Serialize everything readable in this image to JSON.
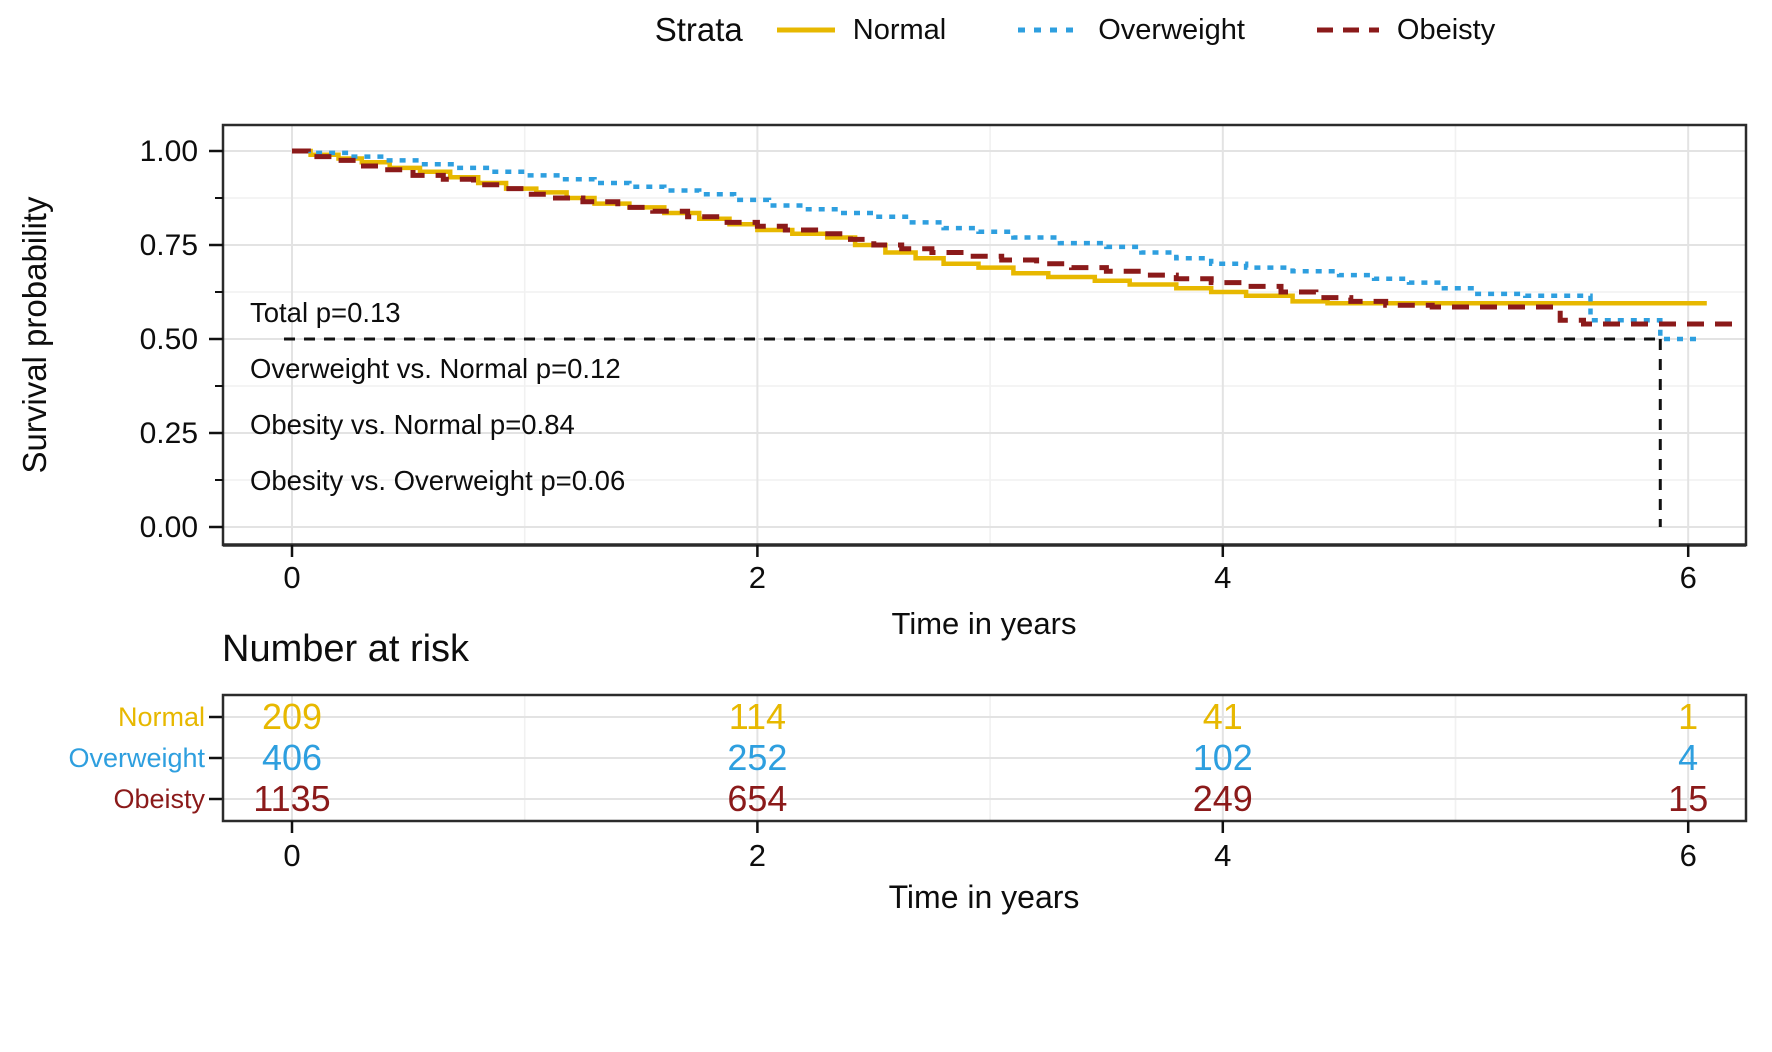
{
  "figure": {
    "background": "#ffffff"
  },
  "legend": {
    "title": "Strata",
    "items": [
      {
        "label": "Normal",
        "color": "#E7B800",
        "style": "solid"
      },
      {
        "label": "Overweight",
        "color": "#2E9FDF",
        "style": "dotted"
      },
      {
        "label": "Obeisty",
        "color": "#8B1A1A",
        "style": "dashed"
      }
    ]
  },
  "chart_data": {
    "type": "line",
    "subtype": "kaplan-meier-step",
    "title": "",
    "xlabel": "Time in years",
    "ylabel": "Survival probability",
    "xlim": [
      0,
      6.35
    ],
    "ylim": [
      0,
      1
    ],
    "xticks": [
      0,
      2,
      4,
      6
    ],
    "xticks_minor": [
      1,
      3,
      5
    ],
    "yticks": [
      {
        "value": 0,
        "label": "0.00"
      },
      {
        "value": 0.25,
        "label": "0.25"
      },
      {
        "value": 0.5,
        "label": "0.50"
      },
      {
        "value": 0.75,
        "label": "0.75"
      },
      {
        "value": 1,
        "label": "1.00"
      }
    ],
    "yticks_minor": [
      0.125,
      0.375,
      0.625,
      0.875
    ],
    "grid": true,
    "legend_position": "top",
    "annotations": [
      "Total p=0.13",
      "Overweight vs. Normal p=0.12",
      "Obesity vs. Normal p=0.84",
      "Obesity vs. Overweight p=0.06"
    ],
    "median_survival": {
      "time": 5.88,
      "probability": 0.5
    },
    "reference_line_color": "#111111",
    "series": [
      {
        "name": "Normal",
        "color": "#E7B800",
        "dash": "solid",
        "points": [
          [
            0,
            1
          ],
          [
            0.08,
            0.99
          ],
          [
            0.2,
            0.98
          ],
          [
            0.3,
            0.97
          ],
          [
            0.42,
            0.955
          ],
          [
            0.55,
            0.945
          ],
          [
            0.68,
            0.93
          ],
          [
            0.8,
            0.915
          ],
          [
            0.92,
            0.9
          ],
          [
            1.05,
            0.89
          ],
          [
            1.18,
            0.875
          ],
          [
            1.3,
            0.86
          ],
          [
            1.45,
            0.85
          ],
          [
            1.6,
            0.835
          ],
          [
            1.75,
            0.82
          ],
          [
            1.88,
            0.805
          ],
          [
            2.0,
            0.79
          ],
          [
            2.15,
            0.78
          ],
          [
            2.3,
            0.77
          ],
          [
            2.42,
            0.75
          ],
          [
            2.55,
            0.73
          ],
          [
            2.68,
            0.715
          ],
          [
            2.8,
            0.7
          ],
          [
            2.95,
            0.69
          ],
          [
            3.1,
            0.675
          ],
          [
            3.25,
            0.665
          ],
          [
            3.45,
            0.655
          ],
          [
            3.6,
            0.645
          ],
          [
            3.8,
            0.635
          ],
          [
            3.95,
            0.625
          ],
          [
            4.1,
            0.615
          ],
          [
            4.3,
            0.6
          ],
          [
            4.45,
            0.595
          ],
          [
            6.08,
            0.595
          ]
        ]
      },
      {
        "name": "Overweight",
        "color": "#2E9FDF",
        "dash": "dotted",
        "points": [
          [
            0,
            1
          ],
          [
            0.1,
            0.995
          ],
          [
            0.25,
            0.985
          ],
          [
            0.4,
            0.975
          ],
          [
            0.55,
            0.965
          ],
          [
            0.7,
            0.955
          ],
          [
            0.85,
            0.945
          ],
          [
            1.0,
            0.935
          ],
          [
            1.15,
            0.925
          ],
          [
            1.3,
            0.915
          ],
          [
            1.45,
            0.905
          ],
          [
            1.6,
            0.895
          ],
          [
            1.75,
            0.885
          ],
          [
            1.9,
            0.87
          ],
          [
            2.05,
            0.855
          ],
          [
            2.2,
            0.845
          ],
          [
            2.35,
            0.835
          ],
          [
            2.5,
            0.825
          ],
          [
            2.65,
            0.81
          ],
          [
            2.8,
            0.795
          ],
          [
            2.95,
            0.785
          ],
          [
            3.1,
            0.77
          ],
          [
            3.3,
            0.755
          ],
          [
            3.5,
            0.745
          ],
          [
            3.65,
            0.73
          ],
          [
            3.8,
            0.715
          ],
          [
            3.95,
            0.7
          ],
          [
            4.1,
            0.69
          ],
          [
            4.3,
            0.68
          ],
          [
            4.5,
            0.67
          ],
          [
            4.65,
            0.66
          ],
          [
            4.8,
            0.65
          ],
          [
            4.95,
            0.635
          ],
          [
            5.08,
            0.62
          ],
          [
            5.3,
            0.615
          ],
          [
            5.58,
            0.55
          ],
          [
            5.88,
            0.5
          ],
          [
            6.06,
            0.5
          ]
        ]
      },
      {
        "name": "Obeisty",
        "color": "#8B1A1A",
        "dash": "dashed",
        "points": [
          [
            0,
            1
          ],
          [
            0.07,
            0.985
          ],
          [
            0.17,
            0.975
          ],
          [
            0.28,
            0.96
          ],
          [
            0.4,
            0.95
          ],
          [
            0.52,
            0.935
          ],
          [
            0.65,
            0.925
          ],
          [
            0.78,
            0.91
          ],
          [
            0.9,
            0.9
          ],
          [
            1.0,
            0.885
          ],
          [
            1.12,
            0.875
          ],
          [
            1.25,
            0.865
          ],
          [
            1.4,
            0.85
          ],
          [
            1.55,
            0.84
          ],
          [
            1.7,
            0.825
          ],
          [
            1.85,
            0.81
          ],
          [
            2.0,
            0.8
          ],
          [
            2.12,
            0.79
          ],
          [
            2.25,
            0.78
          ],
          [
            2.4,
            0.765
          ],
          [
            2.5,
            0.75
          ],
          [
            2.62,
            0.74
          ],
          [
            2.75,
            0.73
          ],
          [
            2.9,
            0.72
          ],
          [
            3.05,
            0.71
          ],
          [
            3.2,
            0.7
          ],
          [
            3.35,
            0.69
          ],
          [
            3.5,
            0.68
          ],
          [
            3.65,
            0.67
          ],
          [
            3.8,
            0.66
          ],
          [
            3.95,
            0.65
          ],
          [
            4.1,
            0.64
          ],
          [
            4.25,
            0.625
          ],
          [
            4.4,
            0.61
          ],
          [
            4.55,
            0.6
          ],
          [
            4.7,
            0.59
          ],
          [
            4.9,
            0.585
          ],
          [
            5.45,
            0.55
          ],
          [
            5.55,
            0.54
          ],
          [
            6.22,
            0.54
          ]
        ]
      }
    ]
  },
  "risk_table": {
    "title": "Number at risk",
    "xlabel": "Time in years",
    "times": [
      0,
      2,
      4,
      6
    ],
    "rows": [
      {
        "label": "Normal",
        "color": "#E7B800",
        "values": [
          "209",
          "114",
          "41",
          "1"
        ]
      },
      {
        "label": "Overweight",
        "color": "#2E9FDF",
        "values": [
          "406",
          "252",
          "102",
          "4"
        ]
      },
      {
        "label": "Obeisty",
        "color": "#8B1A1A",
        "values": [
          "1135",
          "654",
          "249",
          "15"
        ]
      }
    ]
  },
  "style": {
    "grid_major_color": "#e3e3e3",
    "grid_minor_color": "#f1f1f1",
    "panel_border_color": "#2b2b2b",
    "text_color": "#0d0d0d"
  }
}
